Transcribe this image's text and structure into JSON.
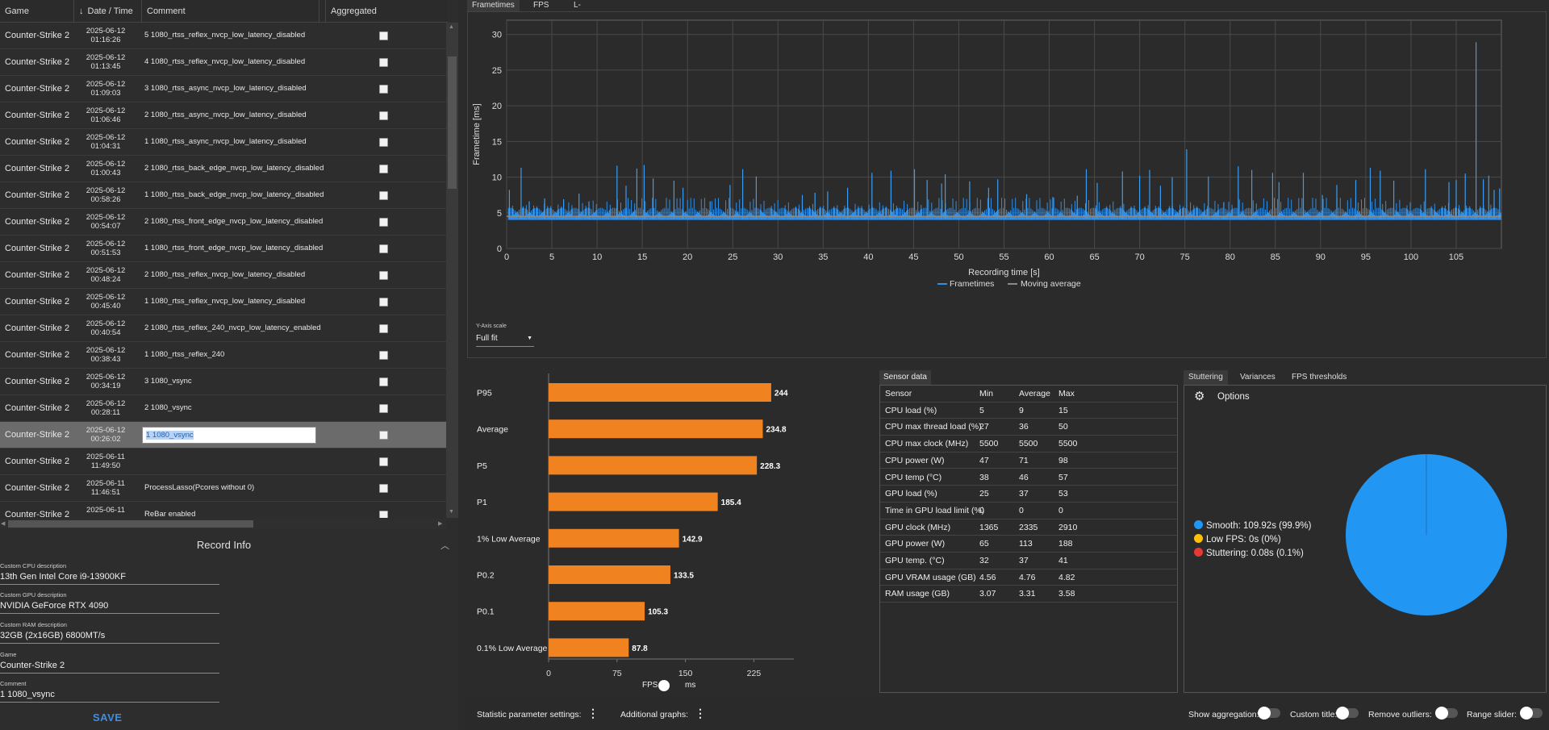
{
  "table": {
    "headers": {
      "game": "Game",
      "date": "Date / Time",
      "comment": "Comment",
      "aggregated": "Aggregated"
    },
    "rows": [
      {
        "game": "Counter-Strike 2",
        "date": "2025-06-12",
        "time": "01:16:26",
        "comment": "5 1080_rtss_reflex_nvcp_low_latency_disabled"
      },
      {
        "game": "Counter-Strike 2",
        "date": "2025-06-12",
        "time": "01:13:45",
        "comment": "4 1080_rtss_reflex_nvcp_low_latency_disabled"
      },
      {
        "game": "Counter-Strike 2",
        "date": "2025-06-12",
        "time": "01:09:03",
        "comment": "3 1080_rtss_async_nvcp_low_latency_disabled"
      },
      {
        "game": "Counter-Strike 2",
        "date": "2025-06-12",
        "time": "01:06:46",
        "comment": "2 1080_rtss_async_nvcp_low_latency_disabled"
      },
      {
        "game": "Counter-Strike 2",
        "date": "2025-06-12",
        "time": "01:04:31",
        "comment": "1 1080_rtss_async_nvcp_low_latency_disabled"
      },
      {
        "game": "Counter-Strike 2",
        "date": "2025-06-12",
        "time": "01:00:43",
        "comment": "2 1080_rtss_back_edge_nvcp_low_latency_disabled"
      },
      {
        "game": "Counter-Strike 2",
        "date": "2025-06-12",
        "time": "00:58:26",
        "comment": "1 1080_rtss_back_edge_nvcp_low_latency_disabled"
      },
      {
        "game": "Counter-Strike 2",
        "date": "2025-06-12",
        "time": "00:54:07",
        "comment": "2 1080_rtss_front_edge_nvcp_low_latency_disabled"
      },
      {
        "game": "Counter-Strike 2",
        "date": "2025-06-12",
        "time": "00:51:53",
        "comment": "1 1080_rtss_front_edge_nvcp_low_latency_disabled"
      },
      {
        "game": "Counter-Strike 2",
        "date": "2025-06-12",
        "time": "00:48:24",
        "comment": "2 1080_rtss_reflex_nvcp_low_latency_disabled"
      },
      {
        "game": "Counter-Strike 2",
        "date": "2025-06-12",
        "time": "00:45:40",
        "comment": "1 1080_rtss_reflex_nvcp_low_latency_disabled"
      },
      {
        "game": "Counter-Strike 2",
        "date": "2025-06-12",
        "time": "00:40:54",
        "comment": "2 1080_rtss_reflex_240_nvcp_low_latency_enabled"
      },
      {
        "game": "Counter-Strike 2",
        "date": "2025-06-12",
        "time": "00:38:43",
        "comment": "1 1080_rtss_reflex_240"
      },
      {
        "game": "Counter-Strike 2",
        "date": "2025-06-12",
        "time": "00:34:19",
        "comment": "3 1080_vsync"
      },
      {
        "game": "Counter-Strike 2",
        "date": "2025-06-12",
        "time": "00:28:11",
        "comment": "2 1080_vsync"
      },
      {
        "game": "Counter-Strike 2",
        "date": "2025-06-12",
        "time": "00:26:02",
        "comment": "1 1080_vsync"
      },
      {
        "game": "Counter-Strike 2",
        "date": "2025-06-11",
        "time": "11:49:50",
        "comment": ""
      },
      {
        "game": "Counter-Strike 2",
        "date": "2025-06-11",
        "time": "11:46:51",
        "comment": "ProcessLasso(Pcores without 0)"
      },
      {
        "game": "Counter-Strike 2",
        "date": "2025-06-11",
        "time": "",
        "comment": "ReBar enabled"
      }
    ]
  },
  "record_info": {
    "title": "Record Info",
    "cpu_label": "Custom CPU description",
    "cpu": "13th Gen Intel Core i9-13900KF",
    "gpu_label": "Custom GPU description",
    "gpu": "NVIDIA GeForce RTX 4090",
    "ram_label": "Custom RAM description",
    "ram": "32GB (2x16GB) 6800MT/s",
    "game_label": "Game",
    "game": "Counter-Strike 2",
    "comment_label": "Comment",
    "comment": "1 1080_vsync",
    "save": "SAVE"
  },
  "tabs": [
    "Frametimes",
    "FPS",
    "L-shape"
  ],
  "frametime_chart": {
    "type": "line",
    "ylabel": "Frametime [ms]",
    "xlabel": "Recording time [s]",
    "xlim": [
      0,
      110
    ],
    "ylim": [
      0,
      32
    ],
    "xticks": [
      0,
      5,
      10,
      15,
      20,
      25,
      30,
      35,
      40,
      45,
      50,
      55,
      60,
      65,
      70,
      75,
      80,
      85,
      90,
      95,
      100,
      105
    ],
    "yticks": [
      0,
      5,
      10,
      15,
      20,
      25,
      30
    ],
    "legend": [
      "Frametimes",
      "Moving average"
    ],
    "baseline_ms": 4.5,
    "spikes": [
      [
        0.3,
        8.2
      ],
      [
        1.6,
        11.3
      ],
      [
        2.5,
        6.6
      ],
      [
        4.2,
        7.0
      ],
      [
        6.3,
        6.9
      ],
      [
        8.0,
        7.7
      ],
      [
        9.1,
        6.6
      ],
      [
        12.2,
        11.6
      ],
      [
        13.2,
        8.8
      ],
      [
        14.4,
        11.2
      ],
      [
        15.2,
        11.7
      ],
      [
        16.2,
        9.8
      ],
      [
        18.5,
        9.5
      ],
      [
        19.5,
        8.5
      ],
      [
        22.5,
        6.6
      ],
      [
        24.7,
        8.9
      ],
      [
        26.1,
        11.1
      ],
      [
        27.6,
        10.1
      ],
      [
        32.7,
        7.5
      ],
      [
        34.1,
        7.8
      ],
      [
        35.5,
        8.0
      ],
      [
        37.7,
        8.5
      ],
      [
        40.4,
        10.6
      ],
      [
        42.5,
        10.9
      ],
      [
        45.1,
        11.1
      ],
      [
        46.5,
        9.6
      ],
      [
        48.1,
        9.1
      ],
      [
        48.5,
        10.4
      ],
      [
        51.2,
        9.4
      ],
      [
        53.3,
        8.5
      ],
      [
        54.3,
        9.7
      ],
      [
        57.5,
        7.6
      ],
      [
        60.4,
        7.2
      ],
      [
        63.1,
        7.4
      ],
      [
        64.1,
        11.1
      ],
      [
        65.3,
        9.2
      ],
      [
        68.1,
        10.8
      ],
      [
        70.0,
        10.2
      ],
      [
        71.1,
        11.0
      ],
      [
        72.3,
        8.8
      ],
      [
        73.6,
        10.0
      ],
      [
        75.2,
        13.9
      ],
      [
        77.6,
        10.1
      ],
      [
        79.3,
        6.5
      ],
      [
        80.9,
        11.5
      ],
      [
        82.4,
        11.0
      ],
      [
        84.7,
        10.6
      ],
      [
        85.4,
        9.3
      ],
      [
        88.1,
        10.6
      ],
      [
        90.2,
        7.5
      ],
      [
        91.8,
        8.9
      ],
      [
        93.9,
        9.6
      ],
      [
        95.5,
        11.3
      ],
      [
        96.6,
        10.9
      ],
      [
        98.1,
        9.5
      ],
      [
        101.6,
        11.1
      ],
      [
        104.2,
        9.3
      ],
      [
        105.0,
        9.6
      ],
      [
        106.0,
        10.5
      ],
      [
        107.2,
        28.9
      ],
      [
        108.0,
        9.7
      ],
      [
        108.6,
        10.2
      ],
      [
        109.2,
        8.2
      ],
      [
        109.8,
        8.4
      ]
    ],
    "y_scale_label": "Y-Axis scale",
    "y_scale_value": "Full fit"
  },
  "bar_chart": {
    "type": "bar",
    "categories": [
      "P95",
      "Average",
      "P5",
      "P1",
      "1% Low Average",
      "P0.2",
      "P0.1",
      "0.1% Low Average"
    ],
    "values": [
      244,
      234.8,
      228.3,
      185.4,
      142.9,
      133.5,
      105.3,
      87.8
    ],
    "labels": [
      "244",
      "234.8",
      "228.3",
      "185.4",
      "142.9",
      "133.5",
      "105.3",
      "87.8"
    ],
    "xticks": [
      0,
      75,
      150,
      225
    ],
    "xlim": [
      0,
      260
    ],
    "color": "#f08220",
    "fps_label": "FPS",
    "ms_label": "ms"
  },
  "sensor": {
    "tab": "Sensor data",
    "headers": [
      "Sensor",
      "Min",
      "Average",
      "Max"
    ],
    "rows": [
      [
        "CPU load (%)",
        "5",
        "9",
        "15"
      ],
      [
        "CPU max thread load (%)",
        "27",
        "36",
        "50"
      ],
      [
        "CPU max clock (MHz)",
        "5500",
        "5500",
        "5500"
      ],
      [
        "CPU power (W)",
        "47",
        "71",
        "98"
      ],
      [
        "CPU temp (°C)",
        "38",
        "46",
        "57"
      ],
      [
        "GPU load (%)",
        "25",
        "37",
        "53"
      ],
      [
        "Time in GPU load limit (%)",
        "0",
        "0",
        "0"
      ],
      [
        "GPU clock (MHz)",
        "1365",
        "2335",
        "2910"
      ],
      [
        "GPU power (W)",
        "65",
        "113",
        "188"
      ],
      [
        "GPU temp. (°C)",
        "32",
        "37",
        "41"
      ],
      [
        "GPU VRAM usage (GB)",
        "4.56",
        "4.76",
        "4.82"
      ],
      [
        "RAM usage (GB)",
        "3.07",
        "3.31",
        "3.58"
      ]
    ]
  },
  "stutter": {
    "tabs": [
      "Stuttering",
      "Variances",
      "FPS thresholds"
    ],
    "options": "Options",
    "chart_data": {
      "type": "pie",
      "values": [
        99.9,
        0,
        0.1
      ],
      "colors": [
        "#2196f3",
        "#ffc107",
        "#e53935"
      ]
    },
    "legend": [
      {
        "label": "Smooth:  109.92s (99.9%)",
        "color": "#2196f3"
      },
      {
        "label": "Low FPS:  0s (0%)",
        "color": "#ffc107"
      },
      {
        "label": "Stuttering:  0.08s (0.1%)",
        "color": "#e53935"
      }
    ]
  },
  "bottom": {
    "stat_settings": "Statistic parameter settings:",
    "additional": "Additional graphs:",
    "show_agg": "Show aggregation:",
    "custom_title": "Custom title:",
    "remove_outliers": "Remove outliers:",
    "range_slider": "Range slider:"
  }
}
